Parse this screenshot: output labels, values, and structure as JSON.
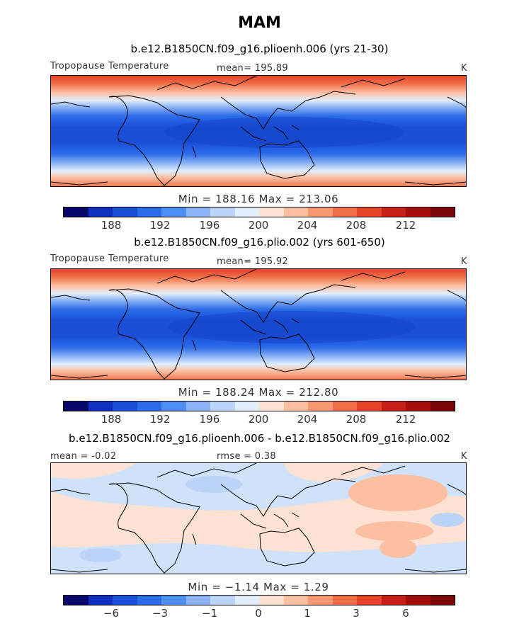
{
  "title": "MAM",
  "colorbar_colors": [
    "#08086b",
    "#0f2fbe",
    "#1a4fd8",
    "#2c6ce8",
    "#4f8ef2",
    "#8ab2f5",
    "#bcd4f8",
    "#e1eefc",
    "#fde2d3",
    "#fbbfa2",
    "#f79873",
    "#f06e47",
    "#e4432a",
    "#c51f18",
    "#a30f0c",
    "#7a0606"
  ],
  "land_color": "#000000",
  "panels": [
    {
      "subtitle": "b.e12.B1850CN.f09_g16.plioenh.006 (yrs 21-30)",
      "left_label": "Tropopause Temperature",
      "center_label": "mean= 195.89",
      "units": "K",
      "minmax": "Min = 188.16 Max = 213.06",
      "colorbar_ticks": [
        "188",
        "192",
        "196",
        "200",
        "204",
        "208",
        "212"
      ]
    },
    {
      "subtitle": "b.e12.B1850CN.f09_g16.plio.002 (yrs 601-650)",
      "left_label": "Tropopause Temperature",
      "center_label": "mean= 195.92",
      "units": "K",
      "minmax": "Min = 188.24 Max = 212.80",
      "colorbar_ticks": [
        "188",
        "192",
        "196",
        "200",
        "204",
        "208",
        "212"
      ]
    },
    {
      "subtitle": "b.e12.B1850CN.f09_g16.plioenh.006 - b.e12.B1850CN.f09_g16.plio.002",
      "left_label": "mean = -0.02",
      "center_label": "rmse = 0.38",
      "units": "K",
      "minmax": "Min = −1.14 Max = 1.29",
      "colorbar_ticks": [
        "−6",
        "−3",
        "−1",
        "0",
        "1",
        "3",
        "6"
      ]
    }
  ]
}
